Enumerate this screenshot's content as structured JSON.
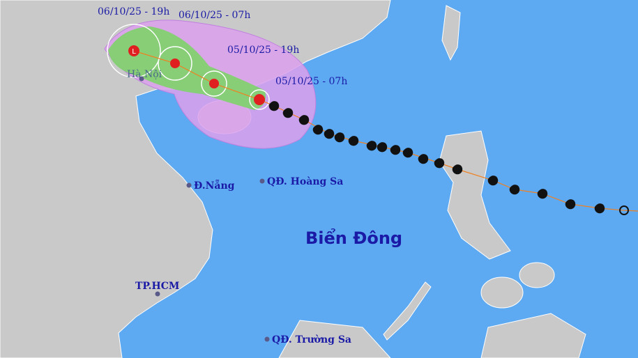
{
  "time_labels": [
    "06/10/25 - 19h",
    "06/10/25 - 07h",
    "05/10/25 - 19h",
    "05/10/25 - 07h"
  ],
  "places": [
    "Hà Nội",
    "Đ.Nẵng",
    "QĐ. Hoàng Sa",
    "TP.HCM",
    "QĐ. Trường Sa"
  ],
  "sea_label": "Biển Đông"
}
